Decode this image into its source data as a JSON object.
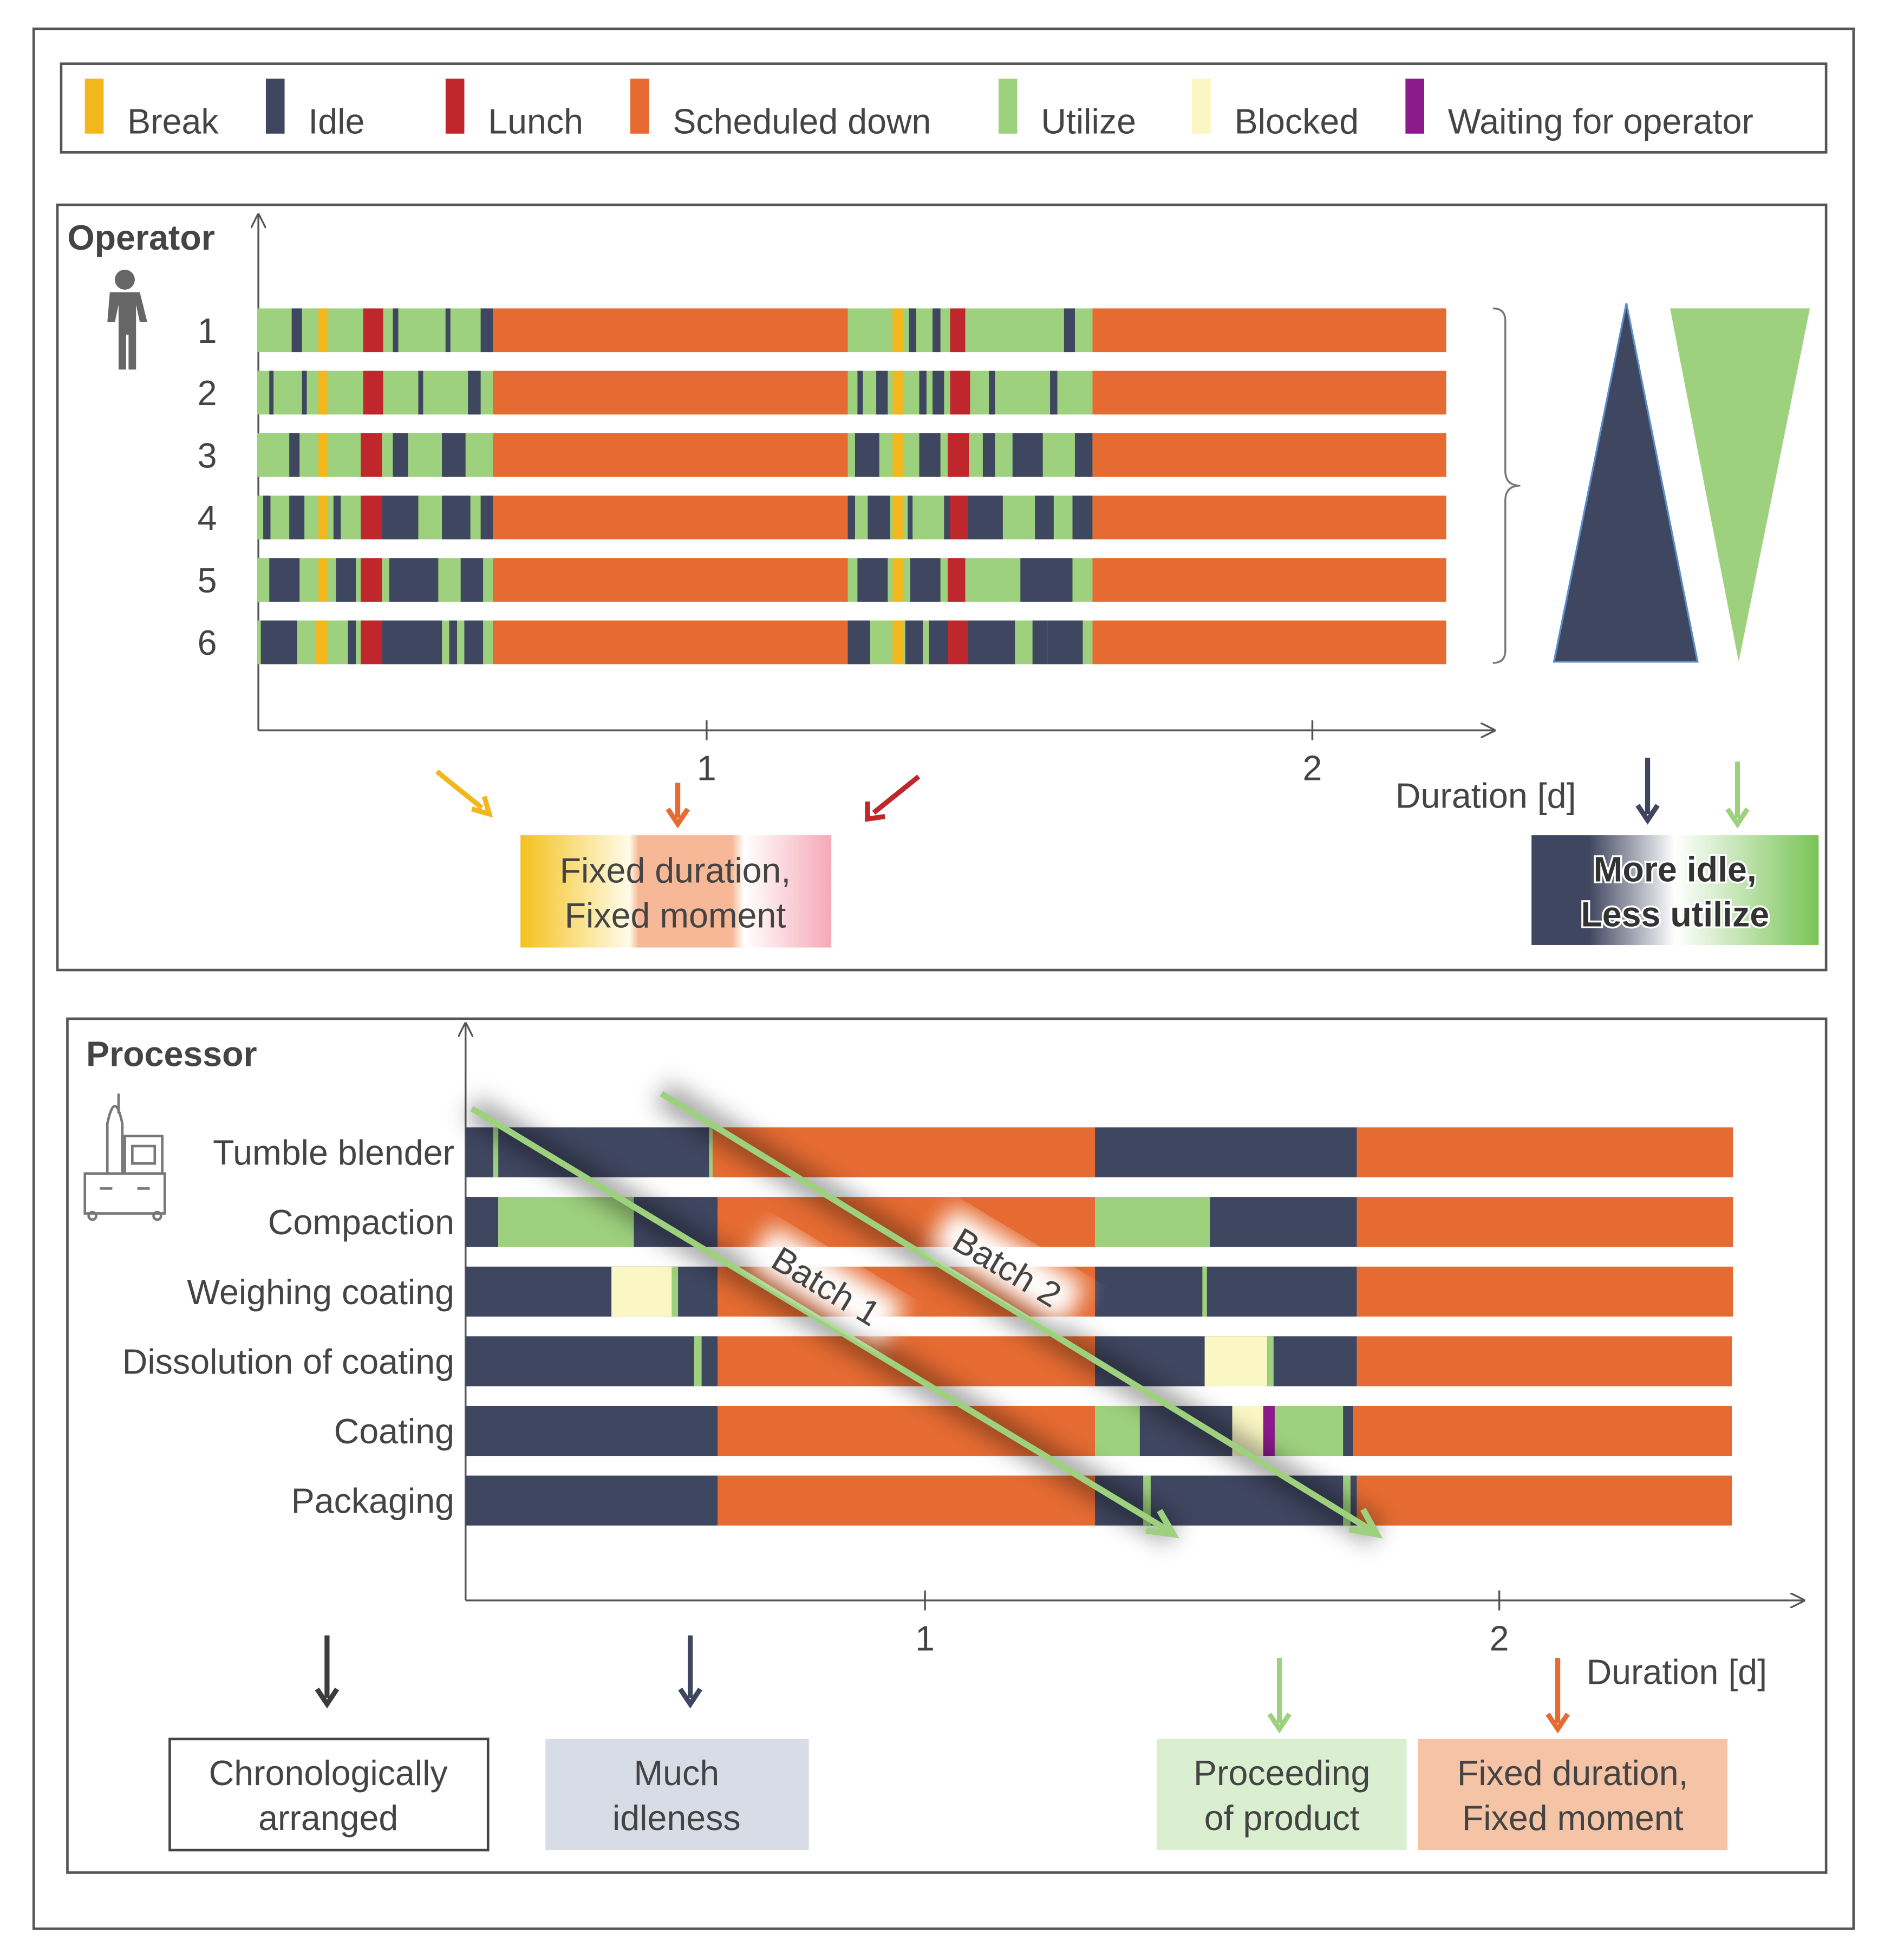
{
  "legend": [
    {
      "name": "Break",
      "color": "#f2b71c"
    },
    {
      "name": "Idle",
      "color": "#3f4660"
    },
    {
      "name": "Lunch",
      "color": "#c0272d"
    },
    {
      "name": "Scheduled down",
      "color": "#e56b32"
    },
    {
      "name": "Utilize",
      "color": "#9dd17d"
    },
    {
      "name": "Blocked",
      "color": "#faf7c4"
    },
    {
      "name": "Waiting for operator",
      "color": "#8b1a8c"
    }
  ],
  "operator": {
    "title": "Operator",
    "xlim": [
      0.26,
      2.3
    ],
    "xticks": [
      1,
      2
    ],
    "xlabel": "Duration [d]",
    "rows": [
      {
        "label": "1",
        "segments": [
          [
            "Utilize",
            0.258,
            0.647
          ],
          [
            "Scheduled down",
            0.647,
            1.233
          ],
          [
            "Utilize",
            1.233,
            1.637
          ],
          [
            "Scheduled down",
            1.637,
            2.221
          ],
          [
            "Break",
            0.359,
            0.375
          ],
          [
            "Lunch",
            0.433,
            0.466
          ],
          [
            "Break",
            1.307,
            1.324
          ],
          [
            "Lunch",
            1.402,
            1.427
          ],
          [
            "Idle",
            0.315,
            0.332
          ],
          [
            "Idle",
            0.482,
            0.491
          ],
          [
            "Idle",
            0.569,
            0.577
          ],
          [
            "Idle",
            0.627,
            0.647
          ],
          [
            "Idle",
            1.334,
            1.346
          ],
          [
            "Idle",
            1.373,
            1.386
          ],
          [
            "Idle",
            1.59,
            1.608
          ]
        ]
      },
      {
        "label": "2",
        "segments": [
          [
            "Utilize",
            0.258,
            0.647
          ],
          [
            "Scheduled down",
            0.647,
            1.233
          ],
          [
            "Utilize",
            1.233,
            1.637
          ],
          [
            "Scheduled down",
            1.637,
            2.221
          ],
          [
            "Break",
            0.359,
            0.375
          ],
          [
            "Lunch",
            0.433,
            0.466
          ],
          [
            "Break",
            1.307,
            1.324
          ],
          [
            "Lunch",
            1.402,
            1.435
          ],
          [
            "Idle",
            0.278,
            0.285
          ],
          [
            "Idle",
            0.332,
            0.34
          ],
          [
            "Idle",
            0.524,
            0.532
          ],
          [
            "Idle",
            0.606,
            0.627
          ],
          [
            "Idle",
            1.249,
            1.258
          ],
          [
            "Idle",
            1.28,
            1.299
          ],
          [
            "Idle",
            1.351,
            1.363
          ],
          [
            "Idle",
            1.373,
            1.392
          ],
          [
            "Idle",
            1.466,
            1.476
          ],
          [
            "Idle",
            1.567,
            1.579
          ]
        ]
      },
      {
        "label": "3",
        "segments": [
          [
            "Utilize",
            0.258,
            0.647
          ],
          [
            "Scheduled down",
            0.647,
            1.233
          ],
          [
            "Utilize",
            1.233,
            1.637
          ],
          [
            "Scheduled down",
            1.637,
            2.221
          ],
          [
            "Break",
            0.359,
            0.375
          ],
          [
            "Lunch",
            0.429,
            0.464
          ],
          [
            "Break",
            1.307,
            1.324
          ],
          [
            "Lunch",
            1.398,
            1.433
          ],
          [
            "Idle",
            0.311,
            0.328
          ],
          [
            "Idle",
            0.482,
            0.507
          ],
          [
            "Idle",
            0.563,
            0.602
          ],
          [
            "Idle",
            1.245,
            1.285
          ],
          [
            "Idle",
            1.351,
            1.386
          ],
          [
            "Idle",
            1.456,
            1.476
          ],
          [
            "Idle",
            1.505,
            1.555
          ],
          [
            "Idle",
            1.608,
            1.637
          ]
        ]
      },
      {
        "label": "4",
        "segments": [
          [
            "Utilize",
            0.258,
            0.647
          ],
          [
            "Scheduled down",
            0.647,
            1.233
          ],
          [
            "Utilize",
            1.233,
            1.637
          ],
          [
            "Scheduled down",
            1.637,
            2.221
          ],
          [
            "Break",
            0.359,
            0.375
          ],
          [
            "Lunch",
            0.429,
            0.464
          ],
          [
            "Break",
            1.307,
            1.324
          ],
          [
            "Lunch",
            1.402,
            1.431
          ],
          [
            "Idle",
            0.268,
            0.28
          ],
          [
            "Idle",
            0.311,
            0.336
          ],
          [
            "Idle",
            0.384,
            0.396
          ],
          [
            "Idle",
            0.464,
            0.524
          ],
          [
            "Idle",
            0.563,
            0.61
          ],
          [
            "Idle",
            0.627,
            0.647
          ],
          [
            "Idle",
            1.233,
            1.245
          ],
          [
            "Idle",
            1.266,
            1.303
          ],
          [
            "Idle",
            1.332,
            1.34
          ],
          [
            "Idle",
            1.392,
            1.402
          ],
          [
            "Idle",
            1.431,
            1.489
          ],
          [
            "Idle",
            1.542,
            1.573
          ],
          [
            "Idle",
            1.604,
            1.637
          ]
        ]
      },
      {
        "label": "5",
        "segments": [
          [
            "Utilize",
            0.258,
            0.647
          ],
          [
            "Scheduled down",
            0.647,
            1.233
          ],
          [
            "Utilize",
            1.233,
            1.637
          ],
          [
            "Scheduled down",
            1.637,
            2.221
          ],
          [
            "Break",
            0.359,
            0.375
          ],
          [
            "Lunch",
            0.429,
            0.464
          ],
          [
            "Break",
            1.307,
            1.324
          ],
          [
            "Lunch",
            1.398,
            1.427
          ],
          [
            "Idle",
            0.278,
            0.328
          ],
          [
            "Idle",
            0.388,
            0.421
          ],
          [
            "Idle",
            0.476,
            0.557
          ],
          [
            "Idle",
            0.594,
            0.631
          ],
          [
            "Idle",
            1.249,
            1.299
          ],
          [
            "Idle",
            1.336,
            1.386
          ],
          [
            "Idle",
            1.518,
            1.604
          ]
        ]
      },
      {
        "label": "6",
        "segments": [
          [
            "Utilize",
            0.258,
            0.647
          ],
          [
            "Scheduled down",
            0.647,
            1.233
          ],
          [
            "Utilize",
            1.233,
            1.637
          ],
          [
            "Scheduled down",
            1.637,
            2.221
          ],
          [
            "Break",
            0.355,
            0.375
          ],
          [
            "Lunch",
            0.429,
            0.464
          ],
          [
            "Break",
            1.307,
            1.324
          ],
          [
            "Lunch",
            1.398,
            1.431
          ],
          [
            "Idle",
            0.264,
            0.324
          ],
          [
            "Idle",
            0.408,
            0.421
          ],
          [
            "Idle",
            0.464,
            0.563
          ],
          [
            "Idle",
            0.575,
            0.588
          ],
          [
            "Idle",
            0.6,
            0.631
          ],
          [
            "Idle",
            1.233,
            1.27
          ],
          [
            "Idle",
            1.328,
            1.357
          ],
          [
            "Idle",
            1.367,
            1.398
          ],
          [
            "Idle",
            1.431,
            1.509
          ],
          [
            "Idle",
            1.538,
            1.563
          ],
          [
            "Idle",
            1.563,
            1.621
          ]
        ]
      }
    ],
    "notes": [
      {
        "lines": [
          "Fixed duration,",
          "Fixed moment"
        ]
      },
      {
        "lines": [
          "More idle,",
          "Less utilize"
        ]
      }
    ]
  },
  "processor": {
    "title": "Processor",
    "xlim": [
      0.2,
      2.53
    ],
    "xticks": [
      1,
      2
    ],
    "xlabel": "Duration [d]",
    "batches": [
      "Batch 1",
      "Batch 2"
    ],
    "rows": [
      {
        "label": "Tumble blender",
        "segments": [
          [
            "Idle",
            0.2,
            0.624
          ],
          [
            "Utilize",
            0.248,
            0.257
          ],
          [
            "Utilize",
            0.624,
            0.63
          ],
          [
            "Scheduled down",
            0.63,
            1.296
          ],
          [
            "Idle",
            1.296,
            1.752
          ],
          [
            "Scheduled down",
            1.752,
            2.407
          ]
        ]
      },
      {
        "label": "Compaction",
        "segments": [
          [
            "Idle",
            0.2,
            0.257
          ],
          [
            "Utilize",
            0.257,
            0.493
          ],
          [
            "Idle",
            0.493,
            0.639
          ],
          [
            "Scheduled down",
            0.639,
            1.296
          ],
          [
            "Utilize",
            1.296,
            1.496
          ],
          [
            "Idle",
            1.496,
            1.752
          ],
          [
            "Scheduled down",
            1.752,
            2.407
          ]
        ]
      },
      {
        "label": "Weighing coating",
        "segments": [
          [
            "Idle",
            0.2,
            0.639
          ],
          [
            "Blocked",
            0.454,
            0.559
          ],
          [
            "Utilize",
            0.559,
            0.57
          ],
          [
            "Scheduled down",
            0.639,
            1.296
          ],
          [
            "Idle",
            1.296,
            1.752
          ],
          [
            "Utilize",
            1.483,
            1.491
          ],
          [
            "Scheduled down",
            1.752,
            2.407
          ]
        ]
      },
      {
        "label": "Dissolution of coating",
        "segments": [
          [
            "Idle",
            0.2,
            0.639
          ],
          [
            "Utilize",
            0.598,
            0.611
          ],
          [
            "Scheduled down",
            0.639,
            1.296
          ],
          [
            "Idle",
            1.296,
            1.752
          ],
          [
            "Blocked",
            1.487,
            1.596
          ],
          [
            "Utilize",
            1.596,
            1.607
          ],
          [
            "Scheduled down",
            1.752,
            2.405
          ]
        ]
      },
      {
        "label": "Coating",
        "segments": [
          [
            "Idle",
            0.2,
            0.639
          ],
          [
            "Scheduled down",
            0.639,
            1.296
          ],
          [
            "Utilize",
            1.296,
            1.374
          ],
          [
            "Idle",
            1.374,
            1.535
          ],
          [
            "Blocked",
            1.535,
            1.589
          ],
          [
            "Waiting for operator",
            1.589,
            1.609
          ],
          [
            "Utilize",
            1.609,
            1.728
          ],
          [
            "Idle",
            1.728,
            1.746
          ],
          [
            "Scheduled down",
            1.746,
            2.405
          ]
        ]
      },
      {
        "label": "Packaging",
        "segments": [
          [
            "Idle",
            0.2,
            0.639
          ],
          [
            "Scheduled down",
            0.639,
            1.296
          ],
          [
            "Idle",
            1.296,
            1.752
          ],
          [
            "Utilize",
            1.38,
            1.393
          ],
          [
            "Utilize",
            1.728,
            1.741
          ],
          [
            "Scheduled down",
            1.752,
            2.405
          ]
        ]
      }
    ],
    "notes": [
      {
        "lines": [
          "Chronologically",
          "arranged"
        ]
      },
      {
        "lines": [
          "Much",
          "idleness"
        ]
      },
      {
        "lines": [
          "Proceeding",
          "of product"
        ]
      },
      {
        "lines": [
          "Fixed duration,",
          "Fixed moment"
        ]
      }
    ]
  }
}
